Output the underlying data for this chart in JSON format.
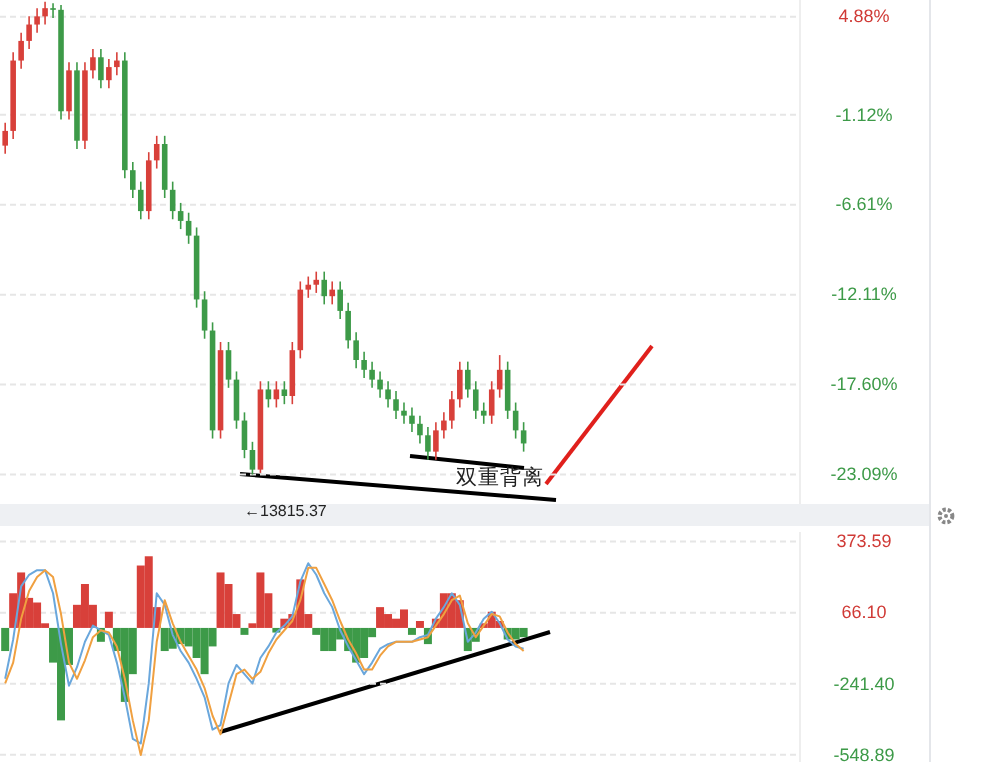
{
  "chart_data": [
    {
      "type": "candlestick",
      "categories": [
        null,
        null,
        null,
        null,
        null,
        null,
        null,
        null,
        null,
        null,
        null,
        null,
        null,
        null,
        null,
        null,
        null,
        null,
        null,
        null,
        null,
        null,
        null,
        null,
        null,
        null,
        null,
        null,
        null,
        null,
        null,
        null,
        null,
        null,
        null,
        null,
        null,
        null,
        null,
        null,
        null,
        null,
        null,
        null,
        null,
        null,
        null,
        null,
        null,
        null,
        null,
        null,
        null,
        null,
        null,
        null,
        null,
        null,
        null,
        null,
        null,
        null,
        null,
        null,
        null,
        null,
        null,
        null,
        null,
        null,
        null,
        null,
        null,
        null,
        null,
        null,
        null,
        null,
        null,
        null,
        null,
        null,
        null,
        null,
        null,
        null,
        null,
        null,
        null,
        null,
        null,
        null,
        null,
        null,
        null,
        null,
        null,
        null,
        null,
        null
      ],
      "ohlc": [
        [
          -3.0,
          -1.6,
          -3.5,
          -2.1
        ],
        [
          -2.1,
          2.7,
          -2.6,
          2.2
        ],
        [
          2.2,
          3.9,
          1.7,
          3.4
        ],
        [
          3.4,
          4.9,
          2.9,
          4.4
        ],
        [
          4.4,
          5.4,
          3.9,
          4.9
        ],
        [
          4.9,
          5.8,
          4.4,
          5.4
        ],
        [
          5.4,
          5.7,
          4.8,
          5.3
        ],
        [
          5.3,
          5.6,
          -1.4,
          -0.9
        ],
        [
          -0.9,
          2.1,
          -1.4,
          1.6
        ],
        [
          1.6,
          2.1,
          -3.2,
          -2.7
        ],
        [
          -2.7,
          2.1,
          -3.2,
          1.6
        ],
        [
          1.6,
          2.9,
          1.1,
          2.4
        ],
        [
          2.4,
          2.9,
          0.5,
          1.0
        ],
        [
          1.0,
          2.3,
          0.5,
          1.8
        ],
        [
          1.8,
          2.7,
          1.3,
          2.2
        ],
        [
          2.2,
          2.7,
          -5.0,
          -4.5
        ],
        [
          -4.5,
          -4.0,
          -6.2,
          -5.7
        ],
        [
          -5.7,
          -5.2,
          -7.5,
          -7.0
        ],
        [
          -7.0,
          -3.4,
          -7.5,
          -3.9
        ],
        [
          -3.9,
          -2.4,
          -4.4,
          -2.9
        ],
        [
          -2.9,
          -2.4,
          -6.2,
          -5.7
        ],
        [
          -5.7,
          -5.2,
          -7.5,
          -7.0
        ],
        [
          -7.0,
          -6.5,
          -8.1,
          -7.6
        ],
        [
          -7.6,
          -7.1,
          -9.0,
          -8.5
        ],
        [
          -8.5,
          -8.0,
          -12.9,
          -12.4
        ],
        [
          -12.4,
          -11.9,
          -14.8,
          -14.3
        ],
        [
          -14.3,
          -13.8,
          -20.9,
          -20.4
        ],
        [
          -20.4,
          -15.0,
          -20.9,
          -15.5
        ],
        [
          -15.5,
          -15.0,
          -17.8,
          -17.3
        ],
        [
          -17.3,
          -16.8,
          -20.3,
          -19.8
        ],
        [
          -19.8,
          -19.3,
          -22.1,
          -21.6
        ],
        [
          -21.6,
          -21.1,
          -23.1,
          -22.8
        ],
        [
          -22.8,
          -17.4,
          -23.0,
          -17.9
        ],
        [
          -17.9,
          -17.4,
          -19.0,
          -18.5
        ],
        [
          -18.5,
          -17.4,
          -19.0,
          -17.9
        ],
        [
          -17.9,
          -17.4,
          -18.8,
          -18.3
        ],
        [
          -18.3,
          -15.0,
          -18.8,
          -15.5
        ],
        [
          -15.5,
          -11.3,
          -16.0,
          -11.8
        ],
        [
          -11.8,
          -11.0,
          -12.3,
          -11.5
        ],
        [
          -11.5,
          -10.7,
          -12.0,
          -11.2
        ],
        [
          -11.2,
          -10.7,
          -12.7,
          -12.2
        ],
        [
          -12.2,
          -11.3,
          -12.7,
          -11.8
        ],
        [
          -11.8,
          -11.3,
          -13.6,
          -13.1
        ],
        [
          -13.1,
          -12.6,
          -15.4,
          -14.9
        ],
        [
          -14.9,
          -14.4,
          -16.6,
          -16.1
        ],
        [
          -16.1,
          -15.6,
          -17.2,
          -16.7
        ],
        [
          -16.7,
          -16.2,
          -17.8,
          -17.3
        ],
        [
          -17.3,
          -16.8,
          -18.4,
          -17.9
        ],
        [
          -17.9,
          -17.4,
          -19.0,
          -18.5
        ],
        [
          -18.5,
          -18.0,
          -19.7,
          -19.2
        ],
        [
          -19.2,
          -18.7,
          -20.0,
          -19.5
        ],
        [
          -19.5,
          -19.0,
          -20.5,
          -20.0
        ],
        [
          -20.0,
          -19.5,
          -21.2,
          -20.7
        ],
        [
          -20.7,
          -20.2,
          -22.2,
          -21.7
        ],
        [
          -21.7,
          -19.9,
          -22.2,
          -20.4
        ],
        [
          -20.4,
          -19.3,
          -20.9,
          -19.8
        ],
        [
          -19.8,
          -18.0,
          -20.3,
          -18.5
        ],
        [
          -18.5,
          -16.2,
          -19.0,
          -16.7
        ],
        [
          -16.7,
          -16.2,
          -18.4,
          -17.9
        ],
        [
          -17.9,
          -17.4,
          -19.7,
          -19.2
        ],
        [
          -19.2,
          -18.7,
          -20.0,
          -19.5
        ],
        [
          -19.5,
          -17.4,
          -20.0,
          -17.9
        ],
        [
          -17.9,
          -15.8,
          -18.4,
          -16.7
        ],
        [
          -16.7,
          -16.2,
          -19.7,
          -19.2
        ],
        [
          -19.2,
          -18.7,
          -20.9,
          -20.4
        ],
        [
          -20.4,
          -19.9,
          -21.7,
          -21.2
        ],
        null,
        null,
        null,
        null,
        null,
        null,
        null,
        null,
        null,
        null,
        null,
        null,
        null,
        null,
        null,
        null,
        null,
        null,
        null,
        null,
        null,
        null,
        null,
        null,
        null,
        null,
        null,
        null,
        null,
        null,
        null,
        null,
        null,
        null
      ],
      "ylim": [
        -24.9,
        5.9
      ],
      "yticks": [
        {
          "value": 4.88,
          "label": "4.88%"
        },
        {
          "value": -1.12,
          "label": "-1.12%"
        },
        {
          "value": -6.61,
          "label": "-6.61%"
        },
        {
          "value": -12.11,
          "label": "-12.11%"
        },
        {
          "value": -17.6,
          "label": "-17.60%"
        },
        {
          "value": -23.09,
          "label": "-23.09%"
        }
      ],
      "grid": "y",
      "tick_labels": "y",
      "annotations": [
        "←13815.37",
        "双重背离"
      ]
    },
    {
      "type": "bar",
      "categories": [
        null,
        null,
        null,
        null,
        null,
        null,
        null,
        null,
        null,
        null,
        null,
        null,
        null,
        null,
        null,
        null,
        null,
        null,
        null,
        null,
        null,
        null,
        null,
        null,
        null,
        null,
        null,
        null,
        null,
        null,
        null,
        null,
        null,
        null,
        null,
        null,
        null,
        null,
        null,
        null,
        null,
        null,
        null,
        null,
        null,
        null,
        null,
        null,
        null,
        null,
        null,
        null,
        null,
        null,
        null,
        null,
        null,
        null,
        null,
        null,
        null,
        null,
        null,
        null,
        null,
        null,
        null,
        null,
        null,
        null,
        null,
        null,
        null,
        null,
        null,
        null,
        null,
        null,
        null,
        null,
        null,
        null,
        null,
        null,
        null,
        null,
        null,
        null,
        null,
        null,
        null,
        null,
        null,
        null,
        null,
        null,
        null,
        null,
        null,
        null
      ],
      "series": [
        {
          "colors": [
            "#3d9a48",
            "#d8403a",
            "#d8403a",
            "#d8403a",
            "#d8403a",
            "#d8403a",
            "#3d9a48",
            "#3d9a48",
            "#3d9a48",
            "#d8403a",
            "#d8403a",
            "#d8403a",
            "#3d9a48",
            "#d8403a",
            "#3d9a48",
            "#3d9a48",
            "#3d9a48",
            "#d8403a",
            "#d8403a",
            "#d8403a",
            "#3d9a48",
            "#3d9a48",
            "#3d9a48",
            "#3d9a48",
            "#3d9a48",
            "#3d9a48",
            "#3d9a48",
            "#d8403a",
            "#d8403a",
            "#d8403a",
            "#3d9a48",
            "#d8403a",
            "#d8403a",
            "#d8403a",
            "#3d9a48",
            "#d8403a",
            "#d8403a",
            "#d8403a",
            "#d8403a",
            "#3d9a48",
            "#3d9a48",
            "#3d9a48",
            "#3d9a48",
            "#3d9a48",
            "#3d9a48",
            "#3d9a48",
            "#3d9a48",
            "#d8403a",
            "#d8403a",
            "#d8403a",
            "#d8403a",
            "#3d9a48",
            "#d8403a",
            "#3d9a48",
            "#d8403a",
            "#d8403a",
            "#d8403a",
            "#d8403a",
            "#3d9a48",
            "#3d9a48",
            "#d8403a",
            "#d8403a",
            "#d8403a",
            "#3d9a48",
            "#3d9a48",
            "#3d9a48",
            null,
            null,
            null,
            null,
            null,
            null,
            null,
            null,
            null,
            null,
            null,
            null,
            null,
            null,
            null,
            null,
            null,
            null,
            null,
            null,
            null,
            null,
            null,
            null,
            null,
            null,
            null,
            null,
            null,
            null,
            null,
            null,
            null,
            null
          ],
          "values": [
            -100,
            150,
            240,
            130,
            110,
            20,
            -150,
            -400,
            -160,
            100,
            190,
            100,
            -60,
            70,
            -100,
            -320,
            -200,
            270,
            310,
            90,
            -100,
            -90,
            -70,
            -80,
            -130,
            -200,
            -80,
            240,
            190,
            60,
            -30,
            20,
            240,
            150,
            -20,
            40,
            60,
            210,
            60,
            -30,
            -100,
            -100,
            -50,
            -100,
            -150,
            -130,
            -40,
            90,
            60,
            40,
            80,
            -30,
            30,
            -70,
            40,
            150,
            150,
            120,
            -100,
            -60,
            20,
            70,
            30,
            -50,
            -50,
            -40,
            null,
            null,
            null,
            null,
            null,
            null,
            null,
            null,
            null,
            null,
            null,
            null,
            null,
            null,
            null,
            null,
            null,
            null,
            null,
            null,
            null,
            null,
            null,
            null,
            null,
            null,
            null,
            null,
            null,
            null,
            null,
            null,
            null,
            null
          ]
        },
        {
          "type": "line",
          "color": "#6aa7dc",
          "values": [
            -220,
            -50,
            180,
            230,
            250,
            250,
            150,
            -70,
            -250,
            -170,
            -60,
            10,
            -10,
            -30,
            -150,
            -300,
            -480,
            -500,
            -240,
            150,
            100,
            -30,
            -100,
            -150,
            -220,
            -300,
            -440,
            -420,
            -240,
            -160,
            -200,
            -240,
            -130,
            -80,
            -20,
            10,
            50,
            200,
            280,
            230,
            150,
            90,
            -10,
            -80,
            -140,
            -200,
            -150,
            -90,
            -70,
            -60,
            -60,
            -60,
            -40,
            -30,
            40,
            90,
            150,
            100,
            -60,
            -20,
            40,
            70,
            20,
            -50,
            -80,
            -90,
            null,
            null,
            null,
            null,
            null,
            null,
            null,
            null,
            null,
            null,
            null,
            null,
            null,
            null,
            null,
            null,
            null,
            null,
            null,
            null,
            null,
            null,
            null,
            null,
            null,
            null,
            null,
            null,
            null,
            null,
            null,
            null,
            null,
            null
          ]
        },
        {
          "type": "line",
          "color": "#f0a040",
          "values": [
            -240,
            -150,
            40,
            160,
            220,
            250,
            220,
            60,
            -150,
            -220,
            -140,
            -40,
            -10,
            -20,
            -80,
            -220,
            -400,
            -550,
            -400,
            -60,
            120,
            20,
            -60,
            -120,
            -180,
            -260,
            -380,
            -460,
            -330,
            -200,
            -180,
            -220,
            -190,
            -110,
            -50,
            -10,
            30,
            120,
            260,
            260,
            190,
            120,
            30,
            -50,
            -110,
            -180,
            -180,
            -120,
            -80,
            -60,
            -60,
            -60,
            -50,
            -40,
            10,
            60,
            120,
            140,
            20,
            -40,
            10,
            60,
            50,
            -20,
            -70,
            -100,
            null,
            null,
            null,
            null,
            null,
            null,
            null,
            null,
            null,
            null,
            null,
            null,
            null,
            null,
            null,
            null,
            null,
            null,
            null,
            null,
            null,
            null,
            null,
            null,
            null,
            null,
            null,
            null,
            null,
            null,
            null,
            null,
            null,
            null
          ]
        }
      ],
      "ylim": [
        -580,
        415
      ],
      "yticks": [
        373.59,
        {
          "value": 66.1,
          "label": "66.10"
        },
        {
          "value": -241.4,
          "label": "-241.40"
        },
        -548.89
      ],
      "grid": "y",
      "tick_labels": "y"
    }
  ]
}
